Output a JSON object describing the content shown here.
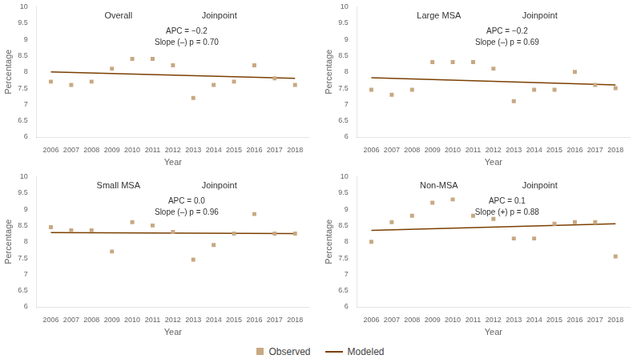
{
  "chart_data": [
    {
      "type": "scatter",
      "annotations": [
        "Overall",
        "Joinpoint",
        "APC = −0.2\nSlope (–) p = 0.70"
      ],
      "xlabel": "Year",
      "ylabel": "Percentage",
      "series": [
        {
          "name": "Observed",
          "type": "scatter",
          "marker": "square",
          "color": "#c8a882",
          "x": [
            2006,
            2007,
            2008,
            2009,
            2010,
            2011,
            2012,
            2013,
            2014,
            2015,
            2016,
            2017,
            2018
          ],
          "values": [
            7.7,
            7.6,
            7.7,
            8.1,
            8.4,
            8.4,
            8.2,
            7.2,
            7.6,
            7.7,
            8.2,
            7.8,
            7.6
          ]
        },
        {
          "name": "Modeled",
          "type": "line",
          "color": "#7b3f00",
          "x": [
            2006,
            2018
          ],
          "values": [
            8.0,
            7.8
          ]
        }
      ],
      "xlim": [
        2005.3,
        2018.7
      ],
      "xticks": [
        2006,
        2007,
        2008,
        2009,
        2010,
        2011,
        2012,
        2013,
        2014,
        2015,
        2016,
        2017,
        2018
      ],
      "ylim": [
        6.0,
        10.0
      ],
      "yticks": [
        6,
        6.5,
        7,
        7.5,
        8,
        8.5,
        9,
        9.5,
        10
      ],
      "grid": false,
      "legend": "bottom"
    },
    {
      "type": "scatter",
      "annotations": [
        "Large MSA",
        "Joinpoint",
        "APC = −0.2\nSlope (–) p = 0.69"
      ],
      "xlabel": "Year",
      "ylabel": "Percentage",
      "series": [
        {
          "name": "Observed",
          "type": "scatter",
          "marker": "square",
          "color": "#c8a882",
          "x": [
            2006,
            2007,
            2008,
            2009,
            2010,
            2011,
            2012,
            2013,
            2014,
            2015,
            2016,
            2017,
            2018
          ],
          "values": [
            7.45,
            7.3,
            7.45,
            8.3,
            8.3,
            8.3,
            8.1,
            7.1,
            7.45,
            7.45,
            8.0,
            7.6,
            7.5
          ]
        },
        {
          "name": "Modeled",
          "type": "line",
          "color": "#7b3f00",
          "x": [
            2006,
            2018
          ],
          "values": [
            7.82,
            7.6
          ]
        }
      ],
      "xlim": [
        2005.3,
        2018.7
      ],
      "xticks": [
        2006,
        2007,
        2008,
        2009,
        2010,
        2011,
        2012,
        2013,
        2014,
        2015,
        2016,
        2017,
        2018
      ],
      "ylim": [
        6.0,
        10.0
      ],
      "yticks": [
        6,
        6.5,
        7,
        7.5,
        8,
        8.5,
        9,
        9.5,
        10
      ],
      "grid": false,
      "legend": "bottom"
    },
    {
      "type": "scatter",
      "annotations": [
        "Small MSA",
        "Joinpoint",
        "APC = 0.0\nSlope (–) p = 0.96"
      ],
      "xlabel": "Year",
      "ylabel": "Percentage",
      "series": [
        {
          "name": "Observed",
          "type": "scatter",
          "marker": "square",
          "color": "#c8a882",
          "x": [
            2006,
            2007,
            2008,
            2009,
            2010,
            2011,
            2012,
            2013,
            2014,
            2015,
            2016,
            2017,
            2018
          ],
          "values": [
            8.45,
            8.35,
            8.35,
            7.7,
            8.6,
            8.5,
            8.3,
            7.45,
            7.9,
            8.25,
            8.85,
            8.25,
            8.25
          ]
        },
        {
          "name": "Modeled",
          "type": "line",
          "color": "#7b3f00",
          "x": [
            2006,
            2018
          ],
          "values": [
            8.28,
            8.25
          ]
        }
      ],
      "xlim": [
        2005.3,
        2018.7
      ],
      "xticks": [
        2006,
        2007,
        2008,
        2009,
        2010,
        2011,
        2012,
        2013,
        2014,
        2015,
        2016,
        2017,
        2018
      ],
      "ylim": [
        6.0,
        10.0
      ],
      "yticks": [
        6,
        6.5,
        7,
        7.5,
        8,
        8.5,
        9,
        9.5,
        10
      ],
      "grid": false,
      "legend": "bottom"
    },
    {
      "type": "scatter",
      "annotations": [
        "Non-MSA",
        "Joinpoint",
        "APC = 0.1\nSlope (+) p = 0.88"
      ],
      "xlabel": "Year",
      "ylabel": "Percentage",
      "series": [
        {
          "name": "Observed",
          "type": "scatter",
          "marker": "square",
          "color": "#c8a882",
          "x": [
            2006,
            2007,
            2008,
            2009,
            2010,
            2011,
            2012,
            2013,
            2014,
            2015,
            2016,
            2017,
            2018
          ],
          "values": [
            8.0,
            8.6,
            8.8,
            9.2,
            9.3,
            8.8,
            8.7,
            8.1,
            8.1,
            8.55,
            8.6,
            8.6,
            7.55
          ]
        },
        {
          "name": "Modeled",
          "type": "line",
          "color": "#7b3f00",
          "x": [
            2006,
            2018
          ],
          "values": [
            8.35,
            8.55
          ]
        }
      ],
      "xlim": [
        2005.3,
        2018.7
      ],
      "xticks": [
        2006,
        2007,
        2008,
        2009,
        2010,
        2011,
        2012,
        2013,
        2014,
        2015,
        2016,
        2017,
        2018
      ],
      "ylim": [
        6.0,
        10.0
      ],
      "yticks": [
        6,
        6.5,
        7,
        7.5,
        8,
        8.5,
        9,
        9.5,
        10
      ],
      "grid": false,
      "legend": "bottom"
    }
  ]
}
